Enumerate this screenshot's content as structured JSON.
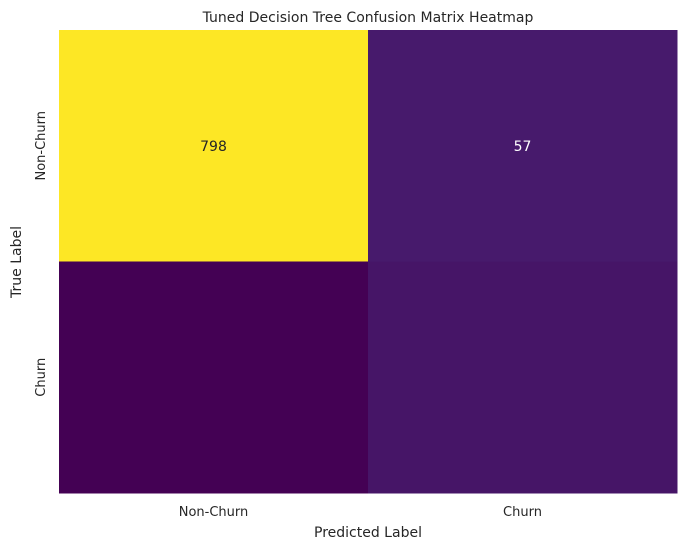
{
  "chart_data": {
    "type": "heatmap",
    "title": "Tuned Decision Tree Confusion Matrix Heatmap",
    "xlabel": "Predicted Label",
    "ylabel": "True Label",
    "x_categories": [
      "Non-Churn",
      "Churn"
    ],
    "y_categories": [
      "Non-Churn",
      "Churn"
    ],
    "values": [
      [
        798,
        57
      ],
      [
        0,
        46
      ]
    ],
    "cell_labels": [
      [
        "798",
        "57"
      ],
      [
        "",
        ""
      ]
    ],
    "colormap": "viridis",
    "value_range": [
      0,
      798
    ],
    "colorbar": false,
    "grid": false
  }
}
